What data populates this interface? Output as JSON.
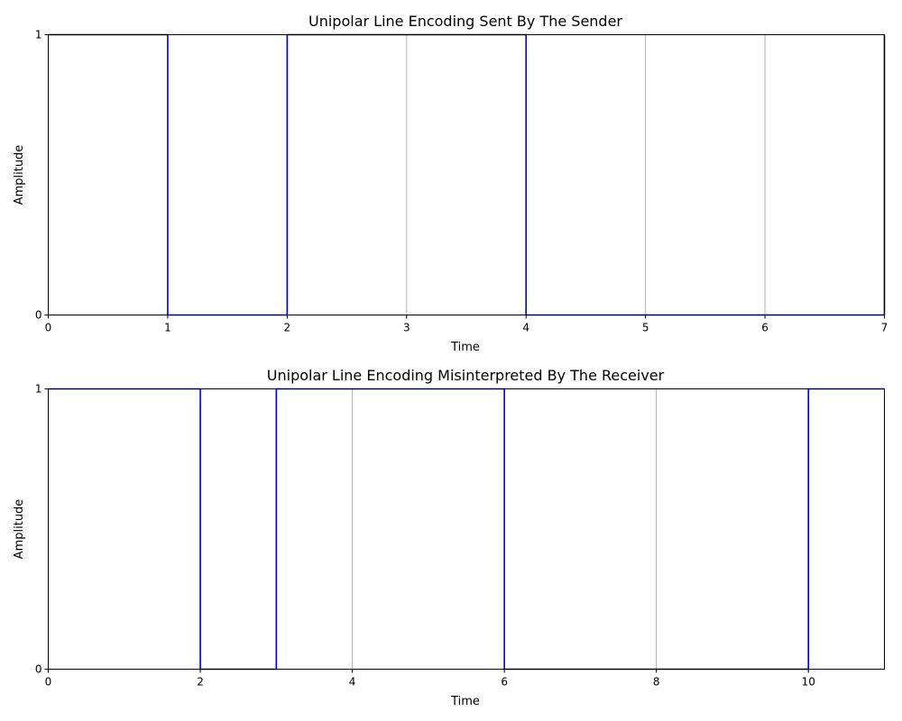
{
  "chart_data": [
    {
      "type": "line",
      "step": "post",
      "title": "Unipolar Line Encoding Sent By The Sender",
      "xlabel": "Time",
      "ylabel": "Amplitude",
      "xlim": [
        0,
        7
      ],
      "ylim": [
        0,
        1
      ],
      "xticks": [
        0,
        1,
        2,
        3,
        4,
        5,
        6,
        7
      ],
      "yticks": [
        0,
        1
      ],
      "grid": "x-axis vertical lines",
      "series": [
        {
          "x": [
            0,
            1,
            2,
            3,
            4,
            5,
            6,
            7
          ],
          "y": [
            1,
            0,
            1,
            1,
            0,
            0,
            0,
            1
          ],
          "color": "#0000cc"
        }
      ]
    },
    {
      "type": "line",
      "step": "post",
      "title": "Unipolar Line Encoding Misinterpreted By The Receiver",
      "xlabel": "Time",
      "ylabel": "Amplitude",
      "xlim": [
        0,
        11
      ],
      "ylim": [
        0,
        1
      ],
      "xticks": [
        0,
        2,
        4,
        6,
        8,
        10
      ],
      "yticks": [
        0,
        1
      ],
      "grid": "x-axis vertical lines",
      "series": [
        {
          "x": [
            0,
            2,
            3,
            6,
            10,
            11
          ],
          "y": [
            1,
            0,
            1,
            0,
            1,
            1
          ],
          "color": "#0000cc"
        }
      ]
    }
  ]
}
